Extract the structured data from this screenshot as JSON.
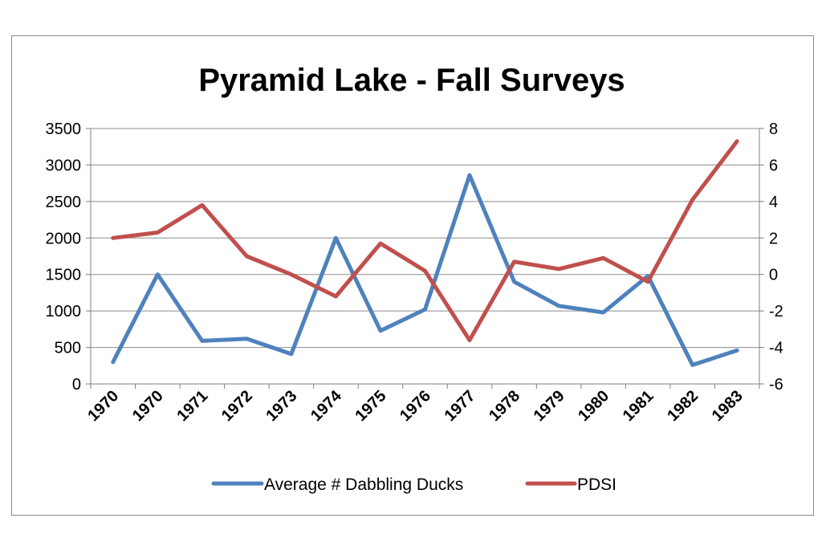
{
  "chart_data": {
    "type": "line",
    "title": "Pyramid Lake - Fall Surveys",
    "categories": [
      "1970",
      "1970",
      "1971",
      "1972",
      "1973",
      "1974",
      "1975",
      "1976",
      "1977",
      "1978",
      "1979",
      "1980",
      "1981",
      "1982",
      "1983"
    ],
    "y_left": {
      "min": 0,
      "max": 3500,
      "ticks": [
        "0",
        "500",
        "1000",
        "1500",
        "2000",
        "2500",
        "3000",
        "3500"
      ]
    },
    "y_right": {
      "min": -6,
      "max": 8,
      "ticks": [
        "-6",
        "-4",
        "-2",
        "0",
        "2",
        "4",
        "6",
        "8"
      ]
    },
    "grid": true,
    "legend_position": "bottom",
    "series": [
      {
        "name": "Average # Dabbling Ducks",
        "axis": "left",
        "color": "#4f81bd",
        "values": [
          300,
          1500,
          590,
          620,
          410,
          2000,
          730,
          1020,
          2860,
          1400,
          1070,
          980,
          1480,
          260,
          460
        ]
      },
      {
        "name": "PDSI",
        "axis": "right",
        "color": "#c0504d",
        "values": [
          2.0,
          2.3,
          3.8,
          1.0,
          0.0,
          -1.2,
          1.7,
          0.2,
          -3.6,
          0.7,
          0.3,
          0.9,
          -0.4,
          4.1,
          7.3
        ]
      }
    ]
  }
}
